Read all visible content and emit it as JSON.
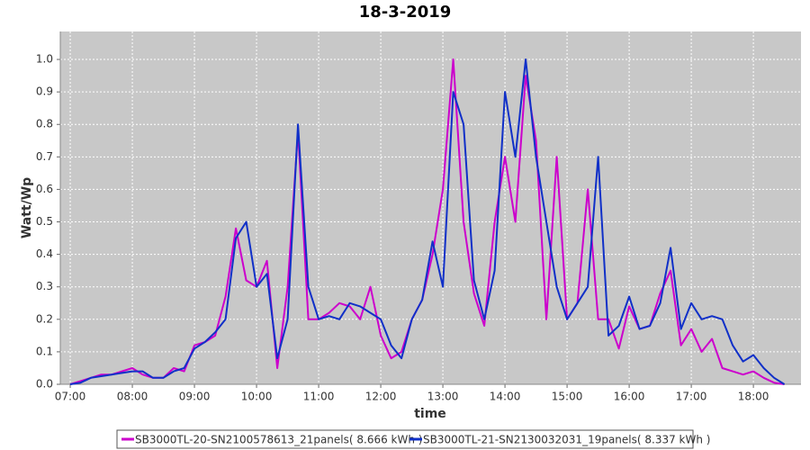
{
  "chart_data": {
    "type": "line",
    "title": "18-3-2019",
    "xlabel": "time",
    "ylabel": "Watt/Wp",
    "x": [
      420,
      430,
      440,
      450,
      460,
      470,
      480,
      490,
      500,
      510,
      520,
      530,
      540,
      550,
      560,
      570,
      580,
      590,
      600,
      610,
      620,
      630,
      640,
      650,
      660,
      670,
      680,
      690,
      700,
      710,
      720,
      730,
      740,
      750,
      760,
      770,
      780,
      790,
      800,
      810,
      820,
      830,
      840,
      850,
      860,
      870,
      880,
      890,
      900,
      910,
      920,
      930,
      940,
      950,
      960,
      970,
      980,
      990,
      1000,
      1010,
      1020,
      1030,
      1040,
      1050,
      1060,
      1070,
      1080,
      1090,
      1100,
      1110
    ],
    "series": [
      {
        "name": "SB3000TL-20-SN2100578613_21panels( 8.666 kWh )",
        "color": "#cc00cc",
        "values": [
          0,
          0.01,
          0.02,
          0.03,
          0.03,
          0.04,
          0.05,
          0.03,
          0.02,
          0.02,
          0.05,
          0.04,
          0.12,
          0.13,
          0.15,
          0.27,
          0.48,
          0.32,
          0.3,
          0.38,
          0.05,
          0.3,
          0.78,
          0.2,
          0.2,
          0.22,
          0.25,
          0.24,
          0.2,
          0.3,
          0.15,
          0.08,
          0.1,
          0.2,
          0.26,
          0.4,
          0.6,
          1.0,
          0.5,
          0.28,
          0.18,
          0.5,
          0.7,
          0.5,
          0.95,
          0.75,
          0.2,
          0.7,
          0.2,
          0.25,
          0.6,
          0.2,
          0.2,
          0.11,
          0.24,
          0.17,
          0.18,
          0.28,
          0.35,
          0.12,
          0.17,
          0.1,
          0.14,
          0.05,
          0.04,
          0.03,
          0.04,
          0.02,
          0.005,
          0
        ]
      },
      {
        "name": "SB3000TL-21-SN2130032031_19panels( 8.337 kWh )",
        "color": "#1030c8",
        "values": [
          0,
          0.005,
          0.02,
          0.025,
          0.03,
          0.035,
          0.04,
          0.04,
          0.02,
          0.02,
          0.04,
          0.05,
          0.11,
          0.13,
          0.16,
          0.2,
          0.45,
          0.5,
          0.3,
          0.34,
          0.08,
          0.2,
          0.8,
          0.3,
          0.2,
          0.21,
          0.2,
          0.25,
          0.24,
          0.22,
          0.2,
          0.12,
          0.08,
          0.2,
          0.26,
          0.44,
          0.3,
          0.9,
          0.8,
          0.32,
          0.2,
          0.35,
          0.9,
          0.7,
          1.0,
          0.7,
          0.5,
          0.3,
          0.2,
          0.25,
          0.3,
          0.7,
          0.15,
          0.18,
          0.27,
          0.17,
          0.18,
          0.25,
          0.42,
          0.17,
          0.25,
          0.2,
          0.21,
          0.2,
          0.12,
          0.07,
          0.09,
          0.05,
          0.02,
          0
        ]
      }
    ],
    "xlim": [
      410.4,
      1126
    ],
    "xticks": [
      {
        "value": 420,
        "label": "07:00"
      },
      {
        "value": 480,
        "label": "08:00"
      },
      {
        "value": 540,
        "label": "09:00"
      },
      {
        "value": 600,
        "label": "10:00"
      },
      {
        "value": 660,
        "label": "11:00"
      },
      {
        "value": 720,
        "label": "12:00"
      },
      {
        "value": 780,
        "label": "13:00"
      },
      {
        "value": 840,
        "label": "14:00"
      },
      {
        "value": 900,
        "label": "15:00"
      },
      {
        "value": 960,
        "label": "16:00"
      },
      {
        "value": 1020,
        "label": "17:00"
      },
      {
        "value": 1080,
        "label": "18:00"
      }
    ],
    "ylim": [
      0,
      1.086
    ],
    "yticks": [
      {
        "value": 0,
        "label": "0.0"
      },
      0.1,
      0.2,
      0.3,
      0.4,
      0.5,
      0.6,
      0.7,
      0.8,
      0.9,
      {
        "value": 1,
        "label": "1.0"
      }
    ],
    "grid": true
  }
}
